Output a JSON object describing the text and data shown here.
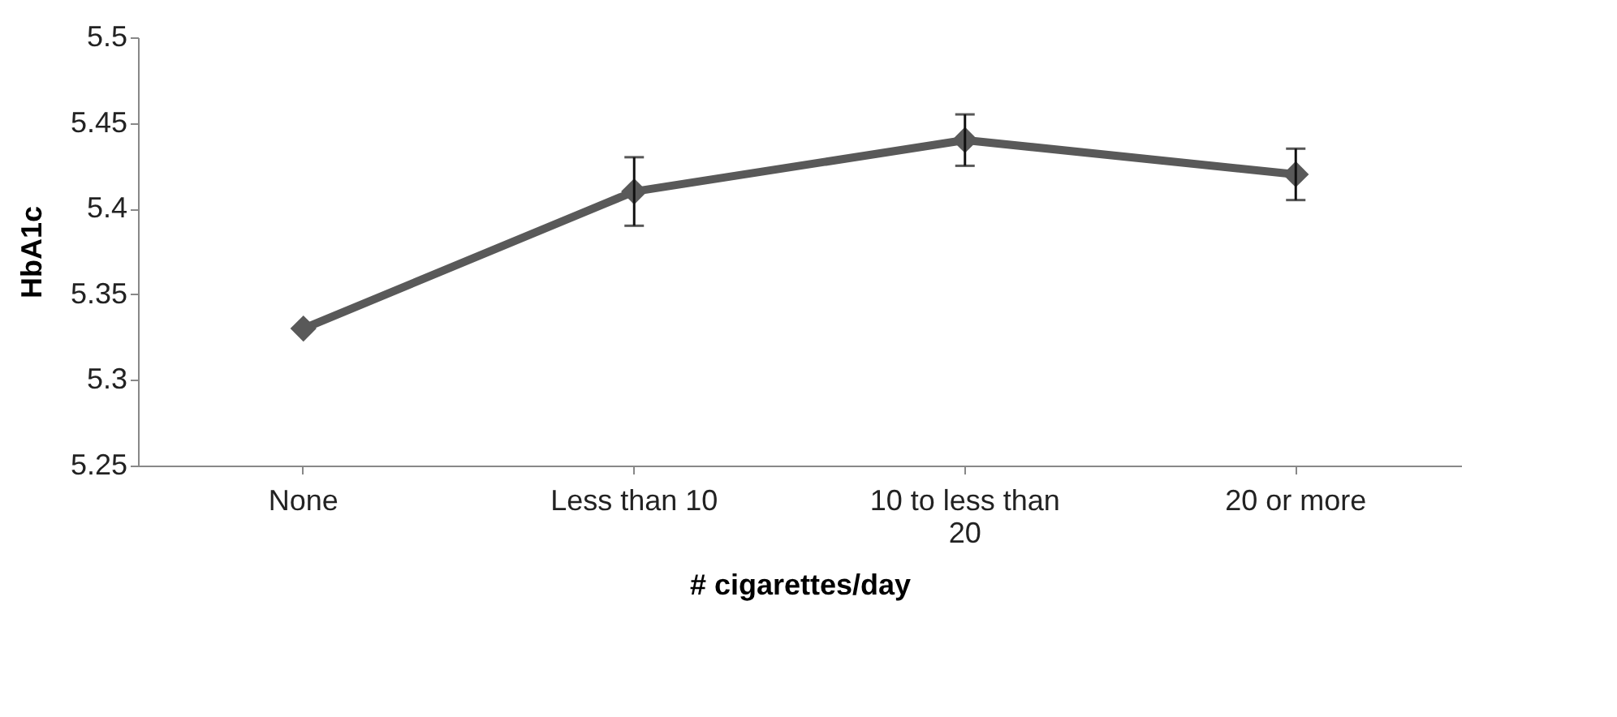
{
  "chart_data": {
    "type": "line",
    "xlabel": "# cigarettes/day",
    "ylabel": "HbA1c",
    "categories": [
      "None",
      "Less than 10",
      "10 to less than 20",
      "20 or more"
    ],
    "series": [
      {
        "color": "#595959",
        "values": [
          5.33,
          5.41,
          5.44,
          5.42
        ],
        "errors": [
          null,
          [
            5.39,
            5.43
          ],
          [
            5.425,
            5.455
          ],
          [
            5.405,
            5.435
          ]
        ]
      }
    ],
    "ylim": [
      5.25,
      5.5
    ],
    "yticks": [
      5.25,
      5.3,
      5.35,
      5.4,
      5.45,
      5.5
    ],
    "grid": false,
    "legend": false,
    "marker": "diamond",
    "line_style": "solid"
  }
}
